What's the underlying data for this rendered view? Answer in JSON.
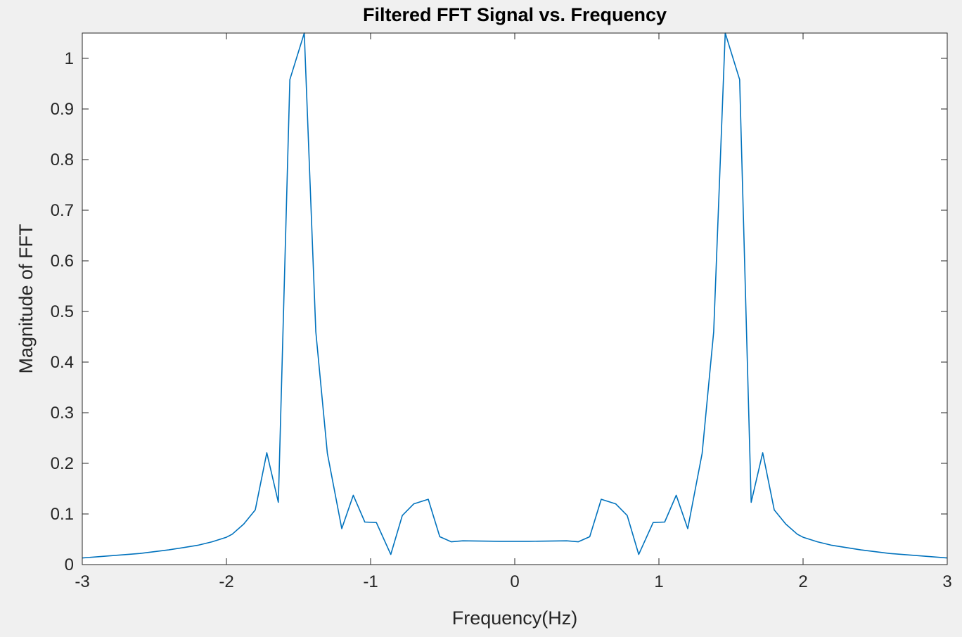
{
  "chart_data": {
    "type": "line",
    "title": "Filtered FFT Signal vs. Frequency",
    "xlabel": "Frequency(Hz)",
    "ylabel": "Magnitude of FFT",
    "xlim": [
      -3,
      3
    ],
    "ylim": [
      0,
      1.05
    ],
    "xticks": [
      -3,
      -2,
      -1,
      0,
      1,
      2,
      3
    ],
    "yticks": [
      0,
      0.1,
      0.2,
      0.3,
      0.4,
      0.5,
      0.6,
      0.7,
      0.8,
      0.9,
      1
    ],
    "grid": false,
    "line_color": "#0072bd",
    "series": [
      {
        "x": [
          -3.0,
          -2.6,
          -2.4,
          -2.2,
          -2.1,
          -2.0,
          -1.96,
          -1.88,
          -1.8,
          -1.72,
          -1.64,
          -1.56,
          -1.46,
          -1.38,
          -1.3,
          -1.2,
          -1.12,
          -1.04,
          -0.96,
          -0.86,
          -0.78,
          -0.7,
          -0.6,
          -0.52,
          -0.44,
          -0.36,
          -0.1,
          0.0,
          0.1,
          0.36,
          0.44,
          0.52,
          0.6,
          0.7,
          0.78,
          0.86,
          0.96,
          1.04,
          1.12,
          1.2,
          1.3,
          1.38,
          1.46,
          1.56,
          1.64,
          1.72,
          1.8,
          1.88,
          1.96,
          2.0,
          2.1,
          2.2,
          2.4,
          2.6,
          3.0
        ],
        "y": [
          0.013,
          0.022,
          0.029,
          0.038,
          0.045,
          0.054,
          0.06,
          0.08,
          0.108,
          0.221,
          0.123,
          0.958,
          1.05,
          0.46,
          0.22,
          0.071,
          0.137,
          0.084,
          0.083,
          0.02,
          0.097,
          0.12,
          0.129,
          0.055,
          0.045,
          0.047,
          0.046,
          0.046,
          0.046,
          0.047,
          0.045,
          0.055,
          0.129,
          0.12,
          0.097,
          0.02,
          0.083,
          0.084,
          0.137,
          0.071,
          0.22,
          0.46,
          1.05,
          0.958,
          0.123,
          0.221,
          0.108,
          0.08,
          0.06,
          0.054,
          0.045,
          0.038,
          0.029,
          0.022,
          0.013
        ]
      }
    ]
  }
}
